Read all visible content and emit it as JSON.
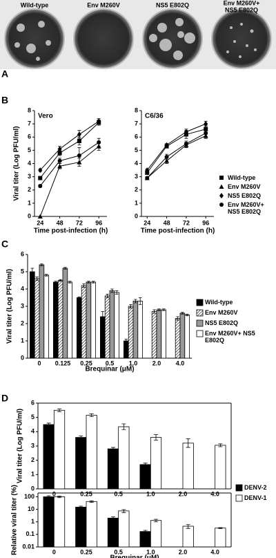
{
  "panel_labels": [
    "A",
    "B",
    "C",
    "D"
  ],
  "plaques": [
    [
      "Wild-type"
    ],
    [
      "Env M260V"
    ],
    [
      "NS5 E802Q"
    ],
    [
      "Env M260V+",
      "NS5 E802Q"
    ]
  ],
  "chart_data": [
    {
      "type": "line",
      "title": "Vero",
      "x": [
        24,
        48,
        72,
        96
      ],
      "xlim": [
        17,
        106
      ],
      "xticks": [
        24,
        48,
        72,
        96
      ],
      "ylim": [
        0,
        8
      ],
      "yticks": [
        0,
        1,
        2,
        3,
        4,
        5,
        6,
        7,
        8
      ],
      "x_label": "Time post-infection (h)",
      "y_label": "Viral titer (Log PFU/ml)",
      "series": [
        {
          "marker": "square",
          "color": "#000000",
          "values": [
            2.9,
            4.8,
            5.7,
            7.1
          ],
          "errors": [
            0.1,
            0.2,
            0.3,
            0.2
          ]
        },
        {
          "marker": "triangle",
          "color": "#000000",
          "values": [
            0,
            3.8,
            4.1,
            5.3
          ],
          "errors": [
            0,
            0.2,
            0.3,
            0.3
          ]
        },
        {
          "marker": "diamond",
          "color": "#000000",
          "values": [
            3.5,
            5.1,
            6.2,
            7.2
          ],
          "errors": [
            0.1,
            0.2,
            0.3,
            0.2
          ]
        },
        {
          "marker": "circle",
          "color": "#000000",
          "values": [
            2.3,
            4.2,
            4.6,
            5.6
          ],
          "errors": [
            0.1,
            0.2,
            0.6,
            0.3
          ]
        }
      ]
    },
    {
      "type": "line",
      "title": "C6/36",
      "x": [
        24,
        48,
        72,
        96
      ],
      "xlim": [
        17,
        106
      ],
      "xticks": [
        24,
        48,
        72,
        96
      ],
      "ylim": [
        0,
        8
      ],
      "yticks": [
        0,
        1,
        2,
        3,
        4,
        5,
        6,
        7,
        8
      ],
      "x_label": "Time post-infection (h)",
      "legend": "right",
      "series": [
        {
          "name": "Wild-type",
          "marker": "square",
          "color": "#000000",
          "values": [
            3.3,
            5.3,
            6.2,
            6.6
          ],
          "errors": [
            0.1,
            0.1,
            0.3,
            0.3
          ]
        },
        {
          "name": "Env M260V",
          "marker": "triangle",
          "color": "#000000",
          "values": [
            2.9,
            4.2,
            5.4,
            6.1
          ],
          "errors": [
            0.1,
            0.2,
            0.2,
            0.2
          ]
        },
        {
          "name": "NS5 E802Q",
          "marker": "diamond",
          "color": "#000000",
          "values": [
            3.5,
            5.4,
            6.4,
            7.0
          ],
          "errors": [
            0.1,
            0.1,
            0.2,
            0.2
          ]
        },
        {
          "name": "Env M260V+ NS5 E802Q",
          "marker": "circle",
          "color": "#000000",
          "values": [
            2.9,
            4.5,
            5.5,
            6.3
          ],
          "errors": [
            0.1,
            0.2,
            0.2,
            0.3
          ]
        }
      ]
    },
    {
      "type": "bar",
      "categories": [
        "0",
        "0.125",
        "0.25",
        "0.5",
        "1.0",
        "2.0",
        "4.0"
      ],
      "ylim": [
        0,
        6
      ],
      "yticks": [
        0,
        1,
        2,
        3,
        4,
        5,
        6
      ],
      "x_label": "Brequinar (μM)",
      "y_label": "Viral titer (Log PFU/ml)",
      "legend": "right",
      "series": [
        {
          "name": "Wild-type",
          "color": "#000000",
          "values": [
            5.0,
            4.4,
            3.5,
            2.4,
            1.0,
            null,
            null
          ],
          "errors": [
            0.2,
            0.05,
            0.05,
            0.3,
            0.1,
            null,
            null
          ]
        },
        {
          "name": "Env M260V",
          "color": "hatch",
          "values": [
            4.6,
            4.5,
            4.2,
            3.6,
            3.0,
            2.7,
            2.3
          ],
          "errors": [
            0.1,
            0.05,
            0.1,
            0.1,
            0.1,
            0.1,
            0.1
          ]
        },
        {
          "name": "NS5 E802Q",
          "color": "#999999",
          "values": [
            5.4,
            5.2,
            4.4,
            3.9,
            3.3,
            2.8,
            2.6
          ],
          "errors": [
            0.05,
            0.05,
            0.05,
            0.1,
            0.1,
            0.05,
            0.05
          ]
        },
        {
          "name": "Env M260V+ NS5 E802Q",
          "color": "#ffffff",
          "values": [
            4.8,
            4.4,
            4.4,
            3.8,
            3.3,
            2.8,
            2.5
          ],
          "errors": [
            0.05,
            0.05,
            0.05,
            0.1,
            0.2,
            0.05,
            0.05
          ]
        }
      ]
    },
    {
      "type": "bar",
      "categories": [
        "0",
        "0.25",
        "0.5",
        "1.0",
        "2.0",
        "4.0"
      ],
      "frame": true,
      "ylim": [
        0,
        6
      ],
      "yticks": [
        0,
        1,
        2,
        3,
        4,
        5,
        6
      ],
      "y_label": "Viral titer (Log PFU/ml)",
      "legend": "right",
      "series": [
        {
          "name": "DENV-2",
          "color": "#000000",
          "values": [
            4.5,
            3.6,
            2.8,
            1.7,
            null,
            null
          ],
          "errors": [
            0.1,
            0.1,
            0.1,
            0.1,
            null,
            null
          ]
        },
        {
          "name": "DENV-1",
          "color": "#ffffff",
          "values": [
            5.5,
            5.15,
            4.35,
            3.6,
            3.2,
            3.05
          ],
          "errors": [
            0.1,
            0.1,
            0.2,
            0.2,
            0.3,
            0.1
          ]
        }
      ]
    },
    {
      "type": "bar",
      "categories": [
        "0",
        "0.25",
        "0.5",
        "1.0",
        "2.0",
        "4.0"
      ],
      "frame": true,
      "log_y": true,
      "ylim": [
        0.01,
        200
      ],
      "yticks": [
        0.01,
        0.1,
        1,
        10,
        100
      ],
      "x_label": "Brequinar (μM)",
      "y_label": "Relative viral titer (%)",
      "series": [
        {
          "color": "#000000",
          "values": [
            100,
            15,
            2,
            0.17,
            null,
            null
          ],
          "errors": [
            20,
            3,
            0.5,
            0.04,
            null,
            null
          ]
        },
        {
          "color": "#ffffff",
          "values": [
            100,
            42,
            7.5,
            1.3,
            0.45,
            0.32
          ],
          "errors": [
            15,
            6,
            2,
            0.3,
            0.15,
            0.03
          ]
        }
      ]
    }
  ]
}
